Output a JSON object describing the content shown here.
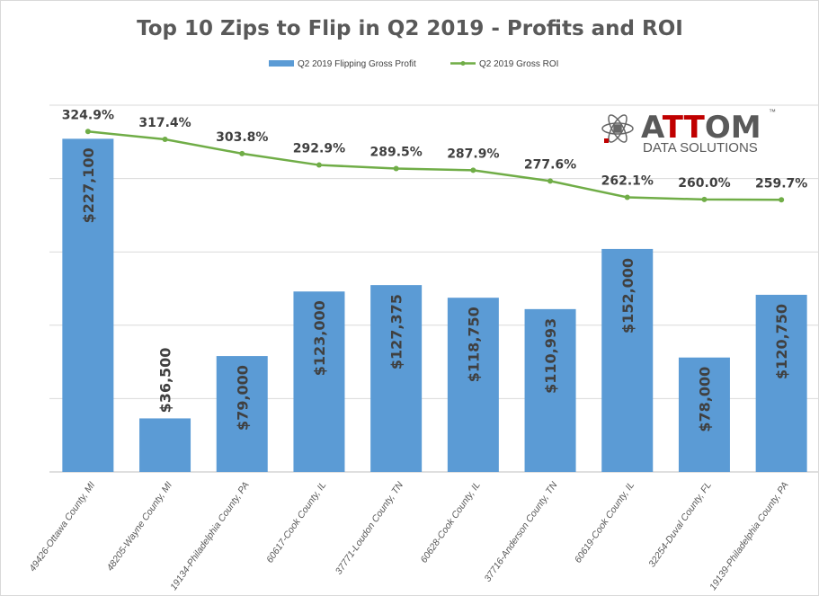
{
  "chart_data": {
    "type": "bar",
    "title": "Top 10 Zips to Flip in Q2 2019 - Profits and ROI",
    "categories": [
      "49426-Ottawa County, MI",
      "48205-Wayne County, MI",
      "19134-Philadelphia County, PA",
      "60617-Cook County, IL",
      "37771-Loudon County, TN",
      "60628-Cook County, IL",
      "37716-Anderson County, TN",
      "60619-Cook County, IL",
      "32254-Duval County, FL",
      "19139-Philadelphia County, PA"
    ],
    "series": [
      {
        "name": "Q2 2019 Flipping Gross Profit",
        "type": "bar",
        "axis": "primary",
        "color": "#5b9bd5",
        "values": [
          227100,
          36500,
          79000,
          123000,
          127375,
          118750,
          110993,
          152000,
          78000,
          120750
        ],
        "labels": [
          "$227,100",
          "$36,500",
          "$79,000",
          "$123,000",
          "$127,375",
          "$118,750",
          "$110,993",
          "$152,000",
          "$78,000",
          "$120,750"
        ]
      },
      {
        "name": "Q2 2019 Gross ROI",
        "type": "line",
        "axis": "secondary",
        "color": "#70ad47",
        "values": [
          324.9,
          317.4,
          303.8,
          292.9,
          289.5,
          287.9,
          277.6,
          262.1,
          260.0,
          259.7
        ],
        "labels": [
          "324.9%",
          "317.4%",
          "303.8%",
          "292.9%",
          "289.5%",
          "287.9%",
          "277.6%",
          "262.1%",
          "260.0%",
          "259.7%"
        ]
      }
    ],
    "ylim": [
      0,
      250000
    ],
    "y2lim": [
      0,
      350
    ],
    "ygrid_step": 50000,
    "grid": true,
    "legend": "top-center",
    "xlabel": "",
    "ylabel": ""
  },
  "logo": {
    "text": "ATTOM",
    "tm": "™",
    "sub": "DATA SOLUTIONS"
  }
}
